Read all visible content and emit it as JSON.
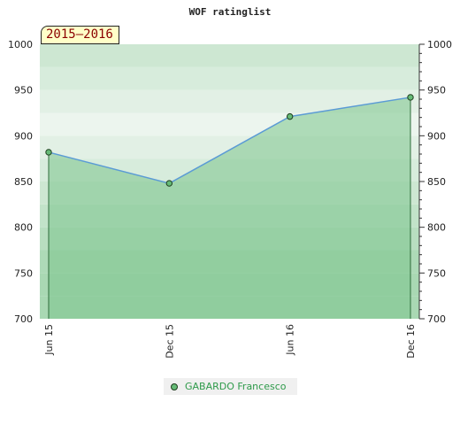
{
  "chart_data": {
    "type": "area",
    "title": "WOF ratinglist",
    "season_label": "2015–2016",
    "categories": [
      "Jun 15",
      "Dec 15",
      "Jun 16",
      "Dec 16"
    ],
    "series": [
      {
        "name": "GABARDO Francesco",
        "values": [
          882,
          848,
          921,
          942
        ]
      }
    ],
    "ylim": [
      700,
      1000
    ],
    "yticks": [
      700,
      750,
      800,
      850,
      900,
      950,
      1000
    ],
    "grid": "horizontal bands",
    "legend_position": "bottom",
    "colors": {
      "line": "#5b9bd5",
      "area": "#7cc48c",
      "marker_fill": "#66bb77",
      "marker_stroke": "#1d3d1d",
      "band_light": "#ecf5ee",
      "band_dark": "#a9d8b3",
      "legend_text": "#2e9a4a",
      "season_text": "#8b0000"
    }
  }
}
